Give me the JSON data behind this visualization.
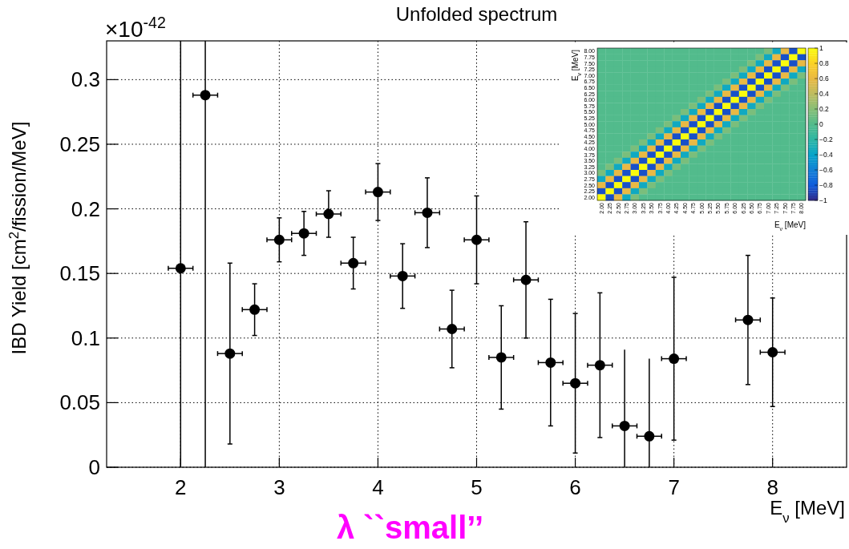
{
  "chart_data": [
    {
      "type": "scatter",
      "title": "Unfolded spectrum",
      "xlabel": "E$_{ν}$ [MeV]",
      "ylabel": "IBD Yield [cm$^{2}$/fission/MeV]",
      "annotations": [
        "×10$^{-42}$",
        "λ ``small’’"
      ],
      "x": [
        2,
        2.25,
        2.5,
        2.75,
        3,
        3.25,
        3.5,
        3.75,
        4,
        4.25,
        4.5,
        4.75,
        5,
        5.25,
        5.5,
        5.75,
        6,
        6.25,
        6.5,
        6.75,
        7,
        7.75,
        8
      ],
      "values": [
        0.154,
        0.288,
        0.088,
        0.122,
        0.176,
        0.181,
        0.196,
        0.158,
        0.213,
        0.148,
        0.197,
        0.107,
        0.176,
        0.085,
        0.145,
        0.081,
        0.065,
        0.079,
        0.032,
        0.024,
        0.084,
        0.114,
        0.089
      ],
      "errors": [
        [
          0,
          0.33
        ],
        [
          0,
          0.33
        ],
        0.07,
        0.02,
        0.017,
        0.017,
        0.018,
        0.02,
        0.022,
        0.025,
        0.027,
        0.03,
        0.034,
        0.04,
        0.045,
        0.049,
        0.054,
        0.056,
        [
          0,
          0.091
        ],
        [
          0,
          0.084
        ],
        0.063,
        0.05,
        0.042
      ],
      "xerrors": [
        0.125,
        0.125,
        0.125,
        0.125,
        0.125,
        0.125,
        0.125,
        0.125,
        0.125,
        0.125,
        0.125,
        0.125,
        0.125,
        0.125,
        0.125,
        0.125,
        0.125,
        0.125,
        0.125,
        0.125,
        0.125,
        0.125,
        0.125
      ],
      "color": "#000000",
      "marker": "circle",
      "xlim": [
        1.25,
        8.75
      ],
      "xticks": [
        2,
        3,
        4,
        5,
        6,
        7,
        8
      ],
      "ylim": [
        0,
        0.33
      ],
      "yticks": [
        0,
        0.05,
        0.1,
        0.15,
        0.2,
        0.25,
        0.3
      ],
      "grid": true
    },
    {
      "type": "heatmap",
      "xlabel": "E$_{ν}$ [MeV]",
      "ylabel": "E$_{ν}$ [MeV]",
      "categories": [
        "2.00",
        "2.25",
        "2.50",
        "2.75",
        "3.00",
        "3.25",
        "3.50",
        "3.75",
        "4.00",
        "4.25",
        "4.50",
        "4.75",
        "5.00",
        "5.25",
        "5.50",
        "5.75",
        "6.00",
        "6.25",
        "6.50",
        "6.75",
        "7.00",
        "7.25",
        "7.50",
        "7.75",
        "8.00"
      ],
      "y_categories": [
        "8.00",
        "7.75",
        "7.50",
        "7.25",
        "7.00",
        "6.75",
        "6.50",
        "6.25",
        "6.00",
        "5.75",
        "5.50",
        "5.25",
        "5.00",
        "4.75",
        "4.50",
        "4.25",
        "4.00",
        "3.75",
        "3.50",
        "3.25",
        "3.00",
        "2.75",
        "2.50",
        "2.25",
        "2.00"
      ],
      "cells": [
        [
          0,
          0,
          0,
          0,
          0,
          0,
          0,
          0,
          0,
          0,
          0,
          0,
          0,
          0,
          0,
          0,
          0,
          0,
          0,
          0,
          0.15,
          -0.35,
          0.6,
          -0.85,
          1
        ],
        [
          0,
          0,
          0,
          0,
          0,
          0,
          0,
          0,
          0,
          0,
          0,
          0,
          0,
          0,
          0,
          0,
          0,
          0,
          0,
          0.15,
          -0.35,
          0.6,
          -0.85,
          1,
          -0.85
        ],
        [
          0,
          0,
          0,
          0,
          0,
          0,
          0,
          0,
          0,
          0,
          0,
          0,
          0,
          0,
          0,
          0,
          0,
          0,
          0.15,
          -0.35,
          0.6,
          -0.85,
          1,
          -0.85,
          0.6
        ],
        [
          0,
          0,
          0,
          0,
          0,
          0,
          0,
          0,
          0,
          0,
          0,
          0,
          0,
          0,
          0,
          0,
          0,
          0.15,
          -0.35,
          0.6,
          -0.85,
          1,
          -0.85,
          0.6,
          -0.35
        ],
        [
          0,
          0,
          0,
          0,
          0,
          0,
          0,
          0,
          0,
          0,
          0,
          0,
          0,
          0,
          0,
          0,
          0.15,
          -0.35,
          0.6,
          -0.85,
          1,
          -0.85,
          0.6,
          -0.35,
          0.15
        ],
        [
          0,
          0,
          0,
          0,
          0,
          0,
          0,
          0,
          0,
          0,
          0,
          0,
          0,
          0,
          0,
          0.15,
          -0.35,
          0.6,
          -0.85,
          1,
          -0.85,
          0.6,
          -0.35,
          0.15,
          0
        ],
        [
          0,
          0,
          0,
          0,
          0,
          0,
          0,
          0,
          0,
          0,
          0,
          0,
          0,
          0,
          0.15,
          -0.35,
          0.6,
          -0.85,
          1,
          -0.85,
          0.6,
          -0.35,
          0.15,
          0,
          0
        ],
        [
          0,
          0,
          0,
          0,
          0,
          0,
          0,
          0,
          0,
          0,
          0,
          0,
          0,
          0.15,
          -0.35,
          0.6,
          -0.85,
          1,
          -0.85,
          0.6,
          -0.35,
          0.15,
          0,
          0,
          0
        ],
        [
          0,
          0,
          0,
          0,
          0,
          0,
          0,
          0,
          0,
          0,
          0,
          0,
          0.15,
          -0.35,
          0.6,
          -0.85,
          1,
          -0.85,
          0.6,
          -0.35,
          0.15,
          0,
          0,
          0,
          0
        ],
        [
          0,
          0,
          0,
          0,
          0,
          0,
          0,
          0,
          0,
          0,
          0,
          0.15,
          -0.35,
          0.6,
          -0.85,
          1,
          -0.85,
          0.6,
          -0.35,
          0.15,
          0,
          0,
          0,
          0,
          0
        ],
        [
          0,
          0,
          0,
          0,
          0,
          0,
          0,
          0,
          0,
          0,
          0.15,
          -0.35,
          0.6,
          -0.85,
          1,
          -0.85,
          0.6,
          -0.35,
          0.15,
          0,
          0,
          0,
          0,
          0,
          0
        ],
        [
          0,
          0,
          0,
          0,
          0,
          0,
          0,
          0,
          0,
          0.15,
          -0.35,
          0.6,
          -0.85,
          1,
          -0.85,
          0.6,
          -0.35,
          0.15,
          0,
          0,
          0,
          0,
          0,
          0,
          0
        ],
        [
          0,
          0,
          0,
          0,
          0,
          0,
          0,
          0,
          0.15,
          -0.35,
          0.6,
          -0.85,
          1,
          -0.85,
          0.6,
          -0.35,
          0.15,
          0,
          0,
          0,
          0,
          0,
          0,
          0,
          0
        ],
        [
          0,
          0,
          0,
          0,
          0,
          0,
          0,
          0.15,
          -0.35,
          0.6,
          -0.85,
          1,
          -0.85,
          0.6,
          -0.35,
          0.15,
          0,
          0,
          0,
          0,
          0,
          0,
          0,
          0,
          0
        ],
        [
          0,
          0,
          0,
          0,
          0,
          0,
          0.15,
          -0.35,
          0.6,
          -0.85,
          1,
          -0.85,
          0.6,
          -0.35,
          0.15,
          0,
          0,
          0,
          0,
          0,
          0,
          0,
          0,
          0,
          0
        ],
        [
          0,
          0,
          0,
          0,
          0,
          0.15,
          -0.35,
          0.6,
          -0.85,
          1,
          -0.85,
          0.6,
          -0.35,
          0.15,
          0,
          0,
          0,
          0,
          0,
          0,
          0,
          0,
          0,
          0,
          0
        ],
        [
          0,
          0,
          0,
          0,
          0.15,
          -0.35,
          0.6,
          -0.85,
          1,
          -0.85,
          0.6,
          -0.35,
          0.15,
          0,
          0,
          0,
          0,
          0,
          0,
          0,
          0,
          0,
          0,
          0,
          0
        ],
        [
          0,
          0,
          0,
          0.15,
          -0.35,
          0.6,
          -0.85,
          1,
          -0.85,
          0.6,
          -0.35,
          0.15,
          0,
          0,
          0,
          0,
          0,
          0,
          0,
          0,
          0,
          0,
          0,
          0,
          0
        ],
        [
          0,
          0,
          0.15,
          -0.35,
          0.6,
          -0.85,
          1,
          -0.85,
          0.6,
          -0.35,
          0.15,
          0,
          0,
          0,
          0,
          0,
          0,
          0,
          0,
          0,
          0,
          0,
          0,
          0,
          0
        ],
        [
          0,
          0.15,
          -0.35,
          0.6,
          -0.85,
          1,
          -0.85,
          0.6,
          -0.35,
          0.15,
          0,
          0,
          0,
          0,
          0,
          0,
          0,
          0,
          0,
          0,
          0,
          0,
          0,
          0,
          0
        ],
        [
          0.15,
          -0.35,
          0.6,
          -0.85,
          1,
          -0.85,
          0.6,
          -0.35,
          0.15,
          0,
          0,
          0,
          0,
          0,
          0,
          0,
          0,
          0,
          0,
          0,
          0,
          0,
          0,
          0,
          0
        ],
        [
          -0.35,
          0.6,
          -0.85,
          1,
          -0.85,
          0.6,
          -0.35,
          0.15,
          0,
          0,
          0,
          0,
          0,
          0,
          0,
          0,
          0,
          0,
          0,
          0,
          0,
          0,
          0,
          0,
          0
        ],
        [
          0.6,
          -0.85,
          1,
          -0.85,
          0.6,
          -0.35,
          0.15,
          0,
          0,
          0,
          0,
          0,
          0,
          0,
          0,
          0,
          0,
          0,
          0,
          0,
          0,
          0,
          0,
          0,
          0
        ],
        [
          -0.85,
          1,
          -0.85,
          0.6,
          -0.35,
          0.15,
          0,
          0,
          0,
          0,
          0,
          0,
          0,
          0,
          0,
          0,
          0,
          0,
          0,
          0,
          0,
          0,
          0,
          0,
          0
        ],
        [
          1,
          -0.85,
          0.6,
          -0.35,
          0.15,
          0,
          0,
          0,
          0,
          0,
          0,
          0,
          0,
          0,
          0,
          0,
          0,
          0,
          0,
          0,
          0,
          0,
          0,
          0,
          0
        ]
      ],
      "clim": [
        -1,
        1
      ],
      "cticks": [
        -1,
        -0.8,
        -0.6,
        -0.4,
        -0.2,
        0,
        0.2,
        0.4,
        0.6,
        0.8,
        1
      ]
    }
  ]
}
